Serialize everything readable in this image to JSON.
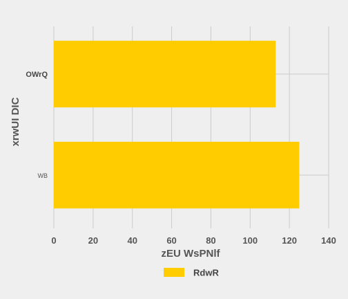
{
  "chart_data": {
    "type": "bar",
    "orientation": "horizontal",
    "categories": [
      "OWrQ",
      "WB"
    ],
    "series": [
      {
        "name": "RdwR",
        "values": [
          113,
          125
        ],
        "color": "#ffcc00"
      }
    ],
    "xlabel": "zEU WsPNlf",
    "ylabel": "xrwUI DIC",
    "xlim": [
      0,
      140
    ],
    "xticks": [
      "0",
      "20",
      "40",
      "60",
      "80",
      "100",
      "120",
      "140"
    ],
    "grid": true,
    "legend_position": "bottom",
    "background": "#efefef",
    "grid_color": "#cbcbcb"
  }
}
